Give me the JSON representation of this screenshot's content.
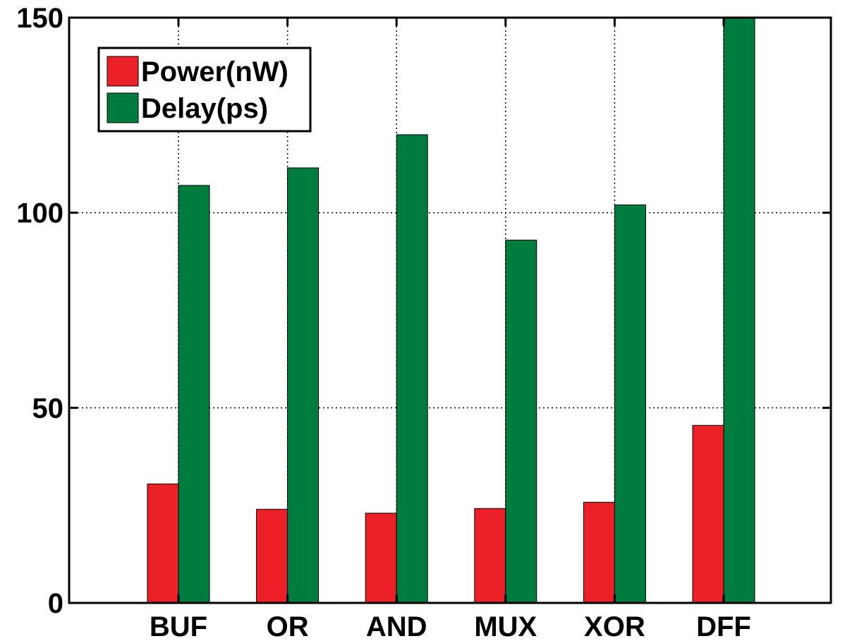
{
  "chart_data": {
    "type": "bar",
    "categories": [
      "BUF",
      "OR",
      "AND",
      "MUX",
      "XOR",
      "DFF"
    ],
    "series": [
      {
        "name": "Power(nW)",
        "color": "#ec2027",
        "values": [
          30.5,
          24,
          23,
          24.2,
          25.8,
          45.5
        ]
      },
      {
        "name": "Delay(ps)",
        "color": "#007c3e",
        "values": [
          107,
          111.5,
          120,
          93,
          102,
          150
        ]
      }
    ],
    "title": "",
    "xlabel": "",
    "ylabel": "",
    "ylim": [
      0,
      150
    ],
    "yticks": [
      0,
      50,
      100,
      150
    ],
    "grid": true,
    "legend_position": "top-left"
  }
}
